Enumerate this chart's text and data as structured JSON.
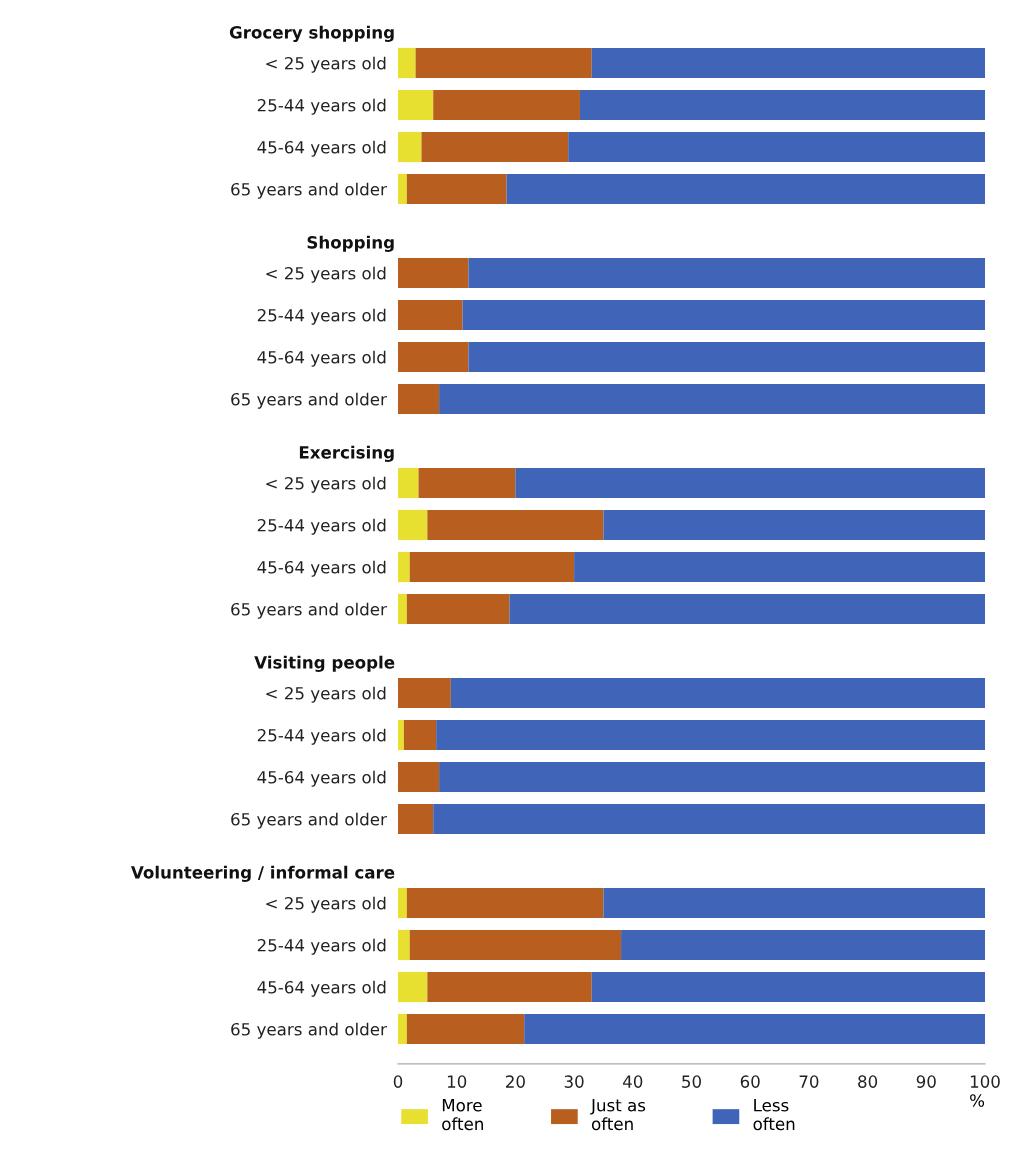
{
  "chart_data": [
    {
      "type": "bar",
      "orientation": "horizontal",
      "stacked": true,
      "title": "Grocery shopping",
      "categories": [
        "< 25 years old",
        "25-44 years old",
        "45-64 years old",
        "65 years and older"
      ],
      "xlim": [
        0,
        100
      ],
      "xticks": [
        0,
        10,
        20,
        30,
        40,
        50,
        60,
        70,
        80,
        90,
        100
      ],
      "tick_labels": "y",
      "series": [
        {
          "color": "#e8e030",
          "values": [
            3,
            6,
            4,
            1.5
          ]
        },
        {
          "color": "#b85e1e",
          "values": [
            30,
            25,
            25,
            17
          ]
        },
        {
          "color": "#4064b8",
          "values": [
            67,
            69,
            71,
            81.5
          ]
        }
      ]
    },
    {
      "type": "bar",
      "orientation": "horizontal",
      "stacked": true,
      "title": "Shopping",
      "categories": [
        "< 25 years old",
        "25-44 years old",
        "45-64 years old",
        "65 years and older"
      ],
      "xlim": [
        0,
        100
      ],
      "xticks": [
        0,
        10,
        20,
        30,
        40,
        50,
        60,
        70,
        80,
        90,
        100
      ],
      "tick_labels": "y",
      "series": [
        {
          "color": "#e8e030",
          "values": [
            0,
            0,
            0,
            0
          ]
        },
        {
          "color": "#b85e1e",
          "values": [
            12,
            11,
            12,
            7
          ]
        },
        {
          "color": "#4064b8",
          "values": [
            88,
            89,
            88,
            93
          ]
        }
      ]
    },
    {
      "type": "bar",
      "orientation": "horizontal",
      "stacked": true,
      "title": "Exercising",
      "categories": [
        "< 25 years old",
        "25-44 years old",
        "45-64 years old",
        "65 years and older"
      ],
      "xlim": [
        0,
        100
      ],
      "xticks": [
        0,
        10,
        20,
        30,
        40,
        50,
        60,
        70,
        80,
        90,
        100
      ],
      "tick_labels": "y",
      "series": [
        {
          "color": "#e8e030",
          "values": [
            3.5,
            5,
            2,
            1.5
          ]
        },
        {
          "color": "#b85e1e",
          "values": [
            16.5,
            30,
            28,
            17.5
          ]
        },
        {
          "color": "#4064b8",
          "values": [
            80,
            65,
            70,
            81
          ]
        }
      ]
    },
    {
      "type": "bar",
      "orientation": "horizontal",
      "stacked": true,
      "title": "Visiting people",
      "categories": [
        "< 25 years old",
        "25-44 years old",
        "45-64 years old",
        "65 years and older"
      ],
      "xlim": [
        0,
        100
      ],
      "xticks": [
        0,
        10,
        20,
        30,
        40,
        50,
        60,
        70,
        80,
        90,
        100
      ],
      "tick_labels": "y",
      "series": [
        {
          "color": "#e8e030",
          "values": [
            0,
            1,
            0,
            0
          ]
        },
        {
          "color": "#b85e1e",
          "values": [
            9,
            5.5,
            7,
            6
          ]
        },
        {
          "color": "#4064b8",
          "values": [
            91,
            93.5,
            93,
            94
          ]
        }
      ]
    },
    {
      "type": "bar",
      "orientation": "horizontal",
      "stacked": true,
      "title": "Volunteering / informal care",
      "categories": [
        "< 25 years old",
        "25-44 years old",
        "45-64 years old",
        "65 years and older"
      ],
      "xlim": [
        0,
        100
      ],
      "xticks": [
        0,
        10,
        20,
        30,
        40,
        50,
        60,
        70,
        80,
        90,
        100
      ],
      "xlabel": "%",
      "legend": "bottom",
      "series": [
        {
          "name": "More\noften",
          "color": "#e8e030",
          "values": [
            1.5,
            2,
            5,
            1.5
          ]
        },
        {
          "name": "Just as\noften",
          "color": "#b85e1e",
          "values": [
            33.5,
            36,
            28,
            20
          ]
        },
        {
          "name": "Less\noften",
          "color": "#4064b8",
          "values": [
            65,
            62,
            67,
            78.5
          ]
        }
      ]
    }
  ]
}
